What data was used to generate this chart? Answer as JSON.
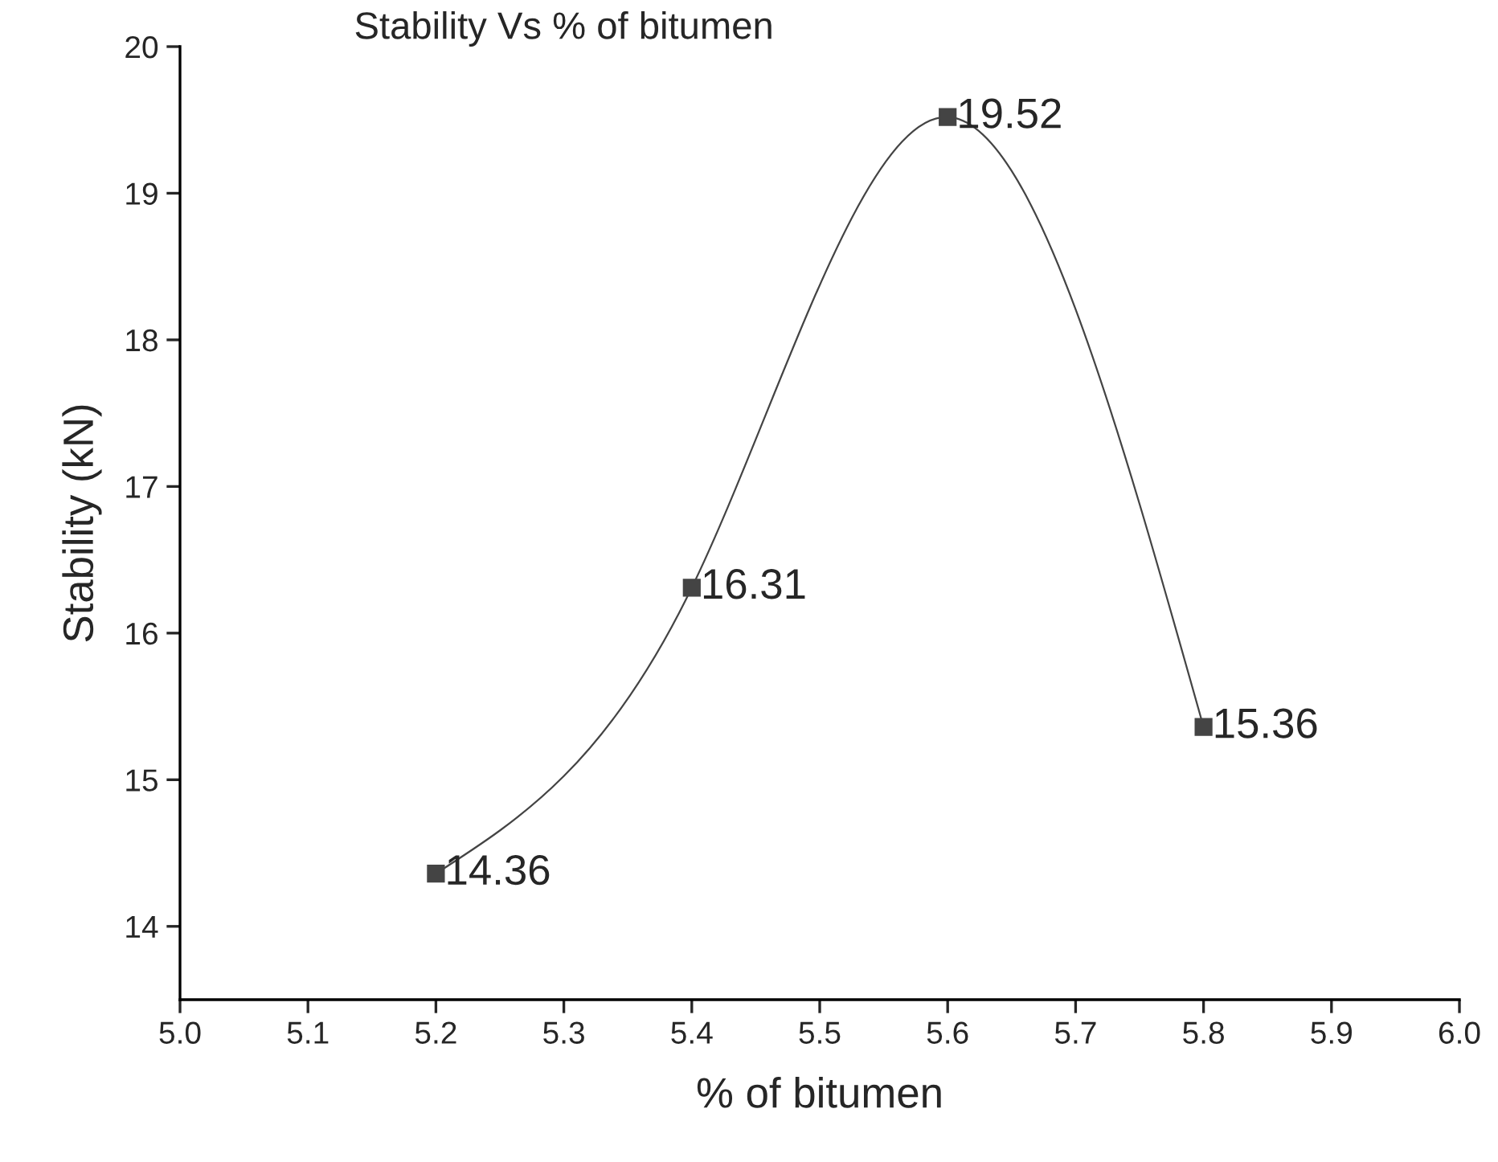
{
  "chart_data": {
    "type": "line",
    "title": "Stability Vs % of bitumen",
    "xlabel": "% of bitumen",
    "ylabel": "Stability (kN)",
    "x": [
      5.2,
      5.4,
      5.6,
      5.8
    ],
    "series": [
      {
        "color": "#444444",
        "values": [
          14.36,
          16.31,
          19.52,
          15.36
        ]
      }
    ],
    "marker": "square",
    "line_style": "solid",
    "data_labels": true,
    "grid": false,
    "xlim": [
      5.0,
      6.0
    ],
    "xticks": [
      {
        "value": 5.0,
        "label": "5.0"
      },
      5.1,
      5.2,
      5.3,
      5.4,
      5.5,
      5.6,
      5.7,
      5.8,
      5.9,
      {
        "value": 6.0,
        "label": "6.0"
      }
    ],
    "ylim": [
      13.5,
      20
    ],
    "yticks": [
      14,
      15,
      16,
      17,
      18,
      19,
      20
    ]
  }
}
